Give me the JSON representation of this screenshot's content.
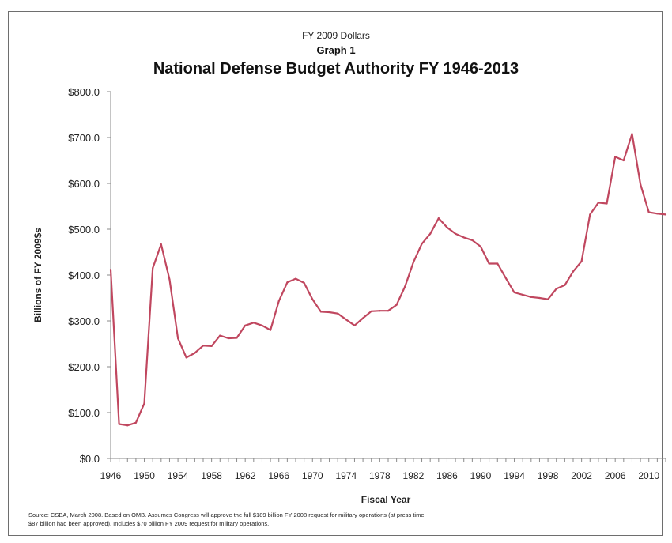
{
  "header": {
    "subtitle": "FY 2009 Dollars",
    "graph_label": "Graph 1",
    "title": "National Defense Budget Authority FY 1946-2013"
  },
  "source_note": {
    "line1": "Source: CSBA, March 2008. Based on OMB. Assumes Congress will approve the full $189 billion FY 2008 request for military operations (at press time,",
    "line2": "$87 billion had been approved). Includes $70 billion FY 2009 request for military operations."
  },
  "colors": {
    "line": "#c0475f",
    "axis": "#8a8a8a",
    "text": "#222222"
  },
  "chart_data": {
    "type": "line",
    "title": "National Defense Budget Authority FY 1946-2013",
    "subtitle": "FY 2009 Dollars",
    "xlabel": "Fiscal Year",
    "ylabel": "Billions of FY 2009$s",
    "xlim": [
      1946,
      2012
    ],
    "ylim": [
      0,
      800
    ],
    "grid": false,
    "legend": "none",
    "yticks": [
      "$0.0",
      "$100.0",
      "$200.0",
      "$300.0",
      "$400.0",
      "$500.0",
      "$600.0",
      "$700.0",
      "$800.0"
    ],
    "ytick_values": [
      0,
      100,
      200,
      300,
      400,
      500,
      600,
      700,
      800
    ],
    "xticks": [
      "1946",
      "1950",
      "1954",
      "1958",
      "1962",
      "1966",
      "1970",
      "1974",
      "1978",
      "1982",
      "1986",
      "1990",
      "1994",
      "1998",
      "2002",
      "2006",
      "2010"
    ],
    "series": [
      {
        "x": [
          1946,
          1947,
          1948,
          1949,
          1950,
          1951,
          1952,
          1953,
          1954,
          1955,
          1956,
          1957,
          1958,
          1959,
          1960,
          1961,
          1962,
          1963,
          1964,
          1965,
          1966,
          1967,
          1968,
          1969,
          1970,
          1971,
          1972,
          1973,
          1974,
          1975,
          1976,
          1977,
          1978,
          1979,
          1980,
          1981,
          1982,
          1983,
          1984,
          1985,
          1986,
          1987,
          1988,
          1989,
          1990,
          1991,
          1992,
          1993,
          1994,
          1995,
          1996,
          1997,
          1998,
          1999,
          2000,
          2001,
          2002,
          2003,
          2004,
          2005,
          2006,
          2007,
          2008,
          2009,
          2010,
          2011,
          2012
        ],
        "values": [
          412,
          75,
          72,
          78,
          120,
          415,
          467,
          390,
          262,
          220,
          230,
          246,
          245,
          268,
          262,
          263,
          290,
          296,
          290,
          280,
          343,
          384,
          392,
          383,
          347,
          320,
          319,
          316,
          303,
          290,
          306,
          321,
          322,
          322,
          335,
          375,
          428,
          468,
          490,
          524,
          504,
          490,
          482,
          476,
          462,
          425,
          425,
          393,
          362,
          357,
          352,
          350,
          347,
          370,
          378,
          408,
          430,
          532,
          558,
          556,
          658,
          650,
          708,
          598,
          537,
          534,
          532
        ]
      }
    ]
  }
}
